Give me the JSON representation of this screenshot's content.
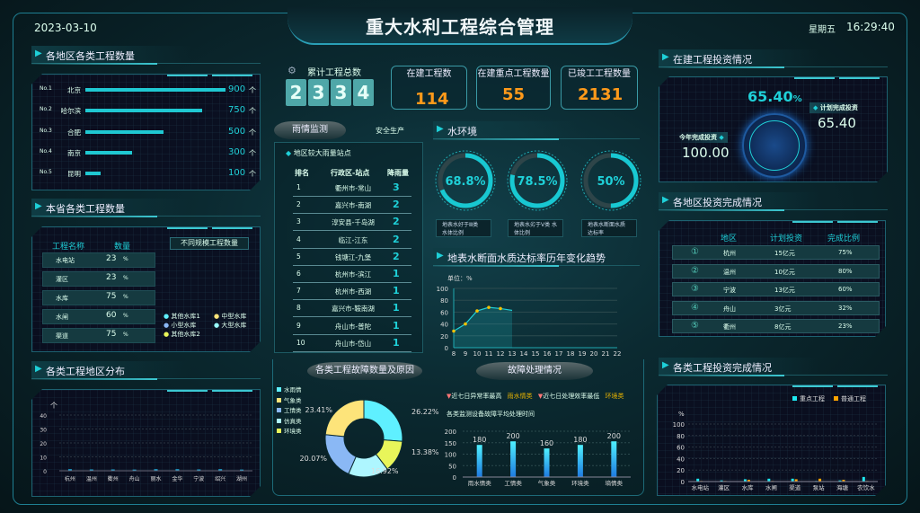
{
  "header": {
    "title": "重大水利工程综合管理",
    "date": "2023-03-10",
    "weekday": "星期五",
    "time": "16:29:40"
  },
  "colors": {
    "accent": "#1fd0d8",
    "orange": "#ff9a1a",
    "bg": "#071a1f"
  },
  "left": {
    "sec1": "各地区各类工程数量",
    "ranking": [
      {
        "no": "No.1",
        "city": "北京",
        "value": 900
      },
      {
        "no": "No.2",
        "city": "哈尔滨",
        "value": 750
      },
      {
        "no": "No.3",
        "city": "合肥",
        "value": 500
      },
      {
        "no": "No.4",
        "city": "南京",
        "value": 300
      },
      {
        "no": "No.5",
        "city": "昆明",
        "value": 100
      }
    ],
    "unit": "个",
    "sec2": "本省各类工程数量",
    "table_headers": [
      "工程名称",
      "数量"
    ],
    "table": [
      {
        "name": "水电站",
        "value": "23"
      },
      {
        "name": "灌区",
        "value": "23"
      },
      {
        "name": "水库",
        "value": "75"
      },
      {
        "name": "水闸",
        "value": "60"
      },
      {
        "name": "渠道",
        "value": "75"
      }
    ],
    "pct": "%",
    "scale_label": "不同规模工程数量",
    "scale_legend": [
      {
        "name": "其他水库1",
        "color": "#5ff0ff"
      },
      {
        "name": "中型水库",
        "color": "#fde47a"
      },
      {
        "name": "小型水库",
        "color": "#8ab8f5"
      },
      {
        "name": "大型水库",
        "color": "#9ff"
      },
      {
        "name": "其他水库2",
        "color": "#e8f55a"
      }
    ],
    "sec3": "各类工程地区分布"
  },
  "center": {
    "total_label": "累计工程总数",
    "total_digits": [
      "2",
      "3",
      "3",
      "4"
    ],
    "cards": [
      {
        "label": "在建工程数",
        "value": "114"
      },
      {
        "label": "在建重点工程数量",
        "value": "55"
      },
      {
        "label": "已竣工工程数量",
        "value": "2131"
      }
    ],
    "tabs": [
      {
        "label": "雨情监测",
        "active": true
      },
      {
        "label": "安全生产",
        "active": false
      }
    ],
    "rain_title": "地区较大雨量站点",
    "rain_headers": [
      "排名",
      "行政区-站点",
      "降雨量"
    ],
    "rain": [
      {
        "rank": "1",
        "site": "衢州市-常山",
        "v": "3"
      },
      {
        "rank": "2",
        "site": "嘉兴市-南湖",
        "v": "2"
      },
      {
        "rank": "3",
        "site": "淳安县-千岛湖",
        "v": "2"
      },
      {
        "rank": "4",
        "site": "临江-江东",
        "v": "2"
      },
      {
        "rank": "5",
        "site": "钱塘江-九堡",
        "v": "2"
      },
      {
        "rank": "6",
        "site": "杭州市-滨江",
        "v": "1"
      },
      {
        "rank": "7",
        "site": "杭州市-西湖",
        "v": "1"
      },
      {
        "rank": "8",
        "site": "嘉兴市-鞍南湖",
        "v": "1"
      },
      {
        "rank": "9",
        "site": "舟山市-普陀",
        "v": "1"
      },
      {
        "rank": "10",
        "site": "舟山市-岱山",
        "v": "1"
      }
    ],
    "water_title": "水环境",
    "gauges": [
      {
        "value": 68.8,
        "label": "68.8%",
        "desc1": "地表水好于Ⅲ类",
        "desc2": "水体比例"
      },
      {
        "value": 78.5,
        "label": "78.5%",
        "desc1": "地表水劣于Ⅴ类",
        "desc2": "水体比例"
      },
      {
        "value": 50,
        "label": "50%",
        "desc1": "地表水断面水质",
        "desc2": "达标率"
      }
    ],
    "trend_title": "地表水断面水质达标率历年变化趋势",
    "fault_title": "各类工程故障数量及原因",
    "handle_title": "故障处理情况",
    "alerts": [
      {
        "label": "近七日异常率最高",
        "value": "雨水情类"
      },
      {
        "label": "近七日处理效率最低",
        "value": "环境类"
      }
    ],
    "bar_subtitle": "各类监测设备故障平均处理时间"
  },
  "right": {
    "sec1": "在建工程投资情况",
    "percent": "65.40",
    "pct": "%",
    "plan_label": "计划完成投资",
    "plan_value": "65.40",
    "year_label": "今年完成投资",
    "year_value": "100.00",
    "sec2": "各地区投资完成情况",
    "headers": [
      "地区",
      "计划投资",
      "完成比例"
    ],
    "rows": [
      {
        "n": "①",
        "region": "杭州",
        "plan": "15亿元",
        "ratio": "75%"
      },
      {
        "n": "②",
        "region": "温州",
        "plan": "10亿元",
        "ratio": "80%"
      },
      {
        "n": "③",
        "region": "宁波",
        "plan": "13亿元",
        "ratio": "60%"
      },
      {
        "n": "④",
        "region": "舟山",
        "plan": "3亿元",
        "ratio": "32%"
      },
      {
        "n": "⑤",
        "region": "衢州",
        "plan": "8亿元",
        "ratio": "23%"
      }
    ],
    "sec3": "各类工程投资完成情况"
  },
  "chart_data": [
    {
      "type": "bar",
      "ylabel": "个",
      "categories": [
        "杭州",
        "温州",
        "衢州",
        "舟山",
        "丽水",
        "金华",
        "宁波",
        "绍兴",
        "湖州"
      ],
      "values": [
        0.5,
        0.3,
        0.3,
        0.2,
        0.5,
        0.5,
        0.3,
        0.5,
        0.2
      ],
      "ylim": [
        0,
        40
      ],
      "ticks": [
        0,
        10,
        20,
        30,
        40
      ]
    },
    {
      "type": "line",
      "ylabel": "单位：%",
      "x": [
        8,
        9,
        10,
        11,
        12,
        13,
        14,
        15,
        16,
        17,
        18,
        19,
        20,
        21,
        22
      ],
      "points": [
        [
          8,
          28
        ],
        [
          9,
          40
        ],
        [
          10,
          62
        ],
        [
          11,
          68
        ],
        [
          12,
          66
        ],
        [
          13,
          63
        ]
      ],
      "ylim": [
        0,
        100
      ],
      "ticks": [
        0,
        20,
        40,
        60,
        80,
        100
      ]
    },
    {
      "type": "pie",
      "series": [
        {
          "name": "水雨情",
          "value": 26.22,
          "label": "26.22%",
          "color": "#5ff0ff"
        },
        {
          "name": "环境类",
          "value": 13.38,
          "label": "13.38%",
          "color": "#e8f55a"
        },
        {
          "name": "仿真类",
          "value": 16.92,
          "label": "16.92%",
          "color": "#aef6ff"
        },
        {
          "name": "工情类",
          "value": 20.07,
          "label": "20.07%",
          "color": "#8ab8f5"
        },
        {
          "name": "气象类",
          "value": 23.41,
          "label": "23.41%",
          "color": "#fde47a"
        }
      ],
      "legend": [
        "水雨情",
        "气象类",
        "工情类",
        "仿真类",
        "环境类"
      ]
    },
    {
      "type": "bar",
      "categories": [
        "雨水情类",
        "工情类",
        "气象类",
        "环境类",
        "墒情类"
      ],
      "values": [
        180,
        200,
        160,
        180,
        200
      ],
      "ylim": [
        0,
        200
      ],
      "ticks": [
        0,
        50,
        100,
        150,
        200
      ]
    },
    {
      "type": "bar",
      "ylabel": "%",
      "categories": [
        "水电站",
        "灌区",
        "水库",
        "水闸",
        "渠道",
        "泵站",
        "海塘",
        "农饮水"
      ],
      "series": [
        {
          "name": "重点工程",
          "color": "#1ee8f0",
          "values": [
            5,
            2,
            4,
            5,
            5,
            1,
            2,
            8
          ]
        },
        {
          "name": "普通工程",
          "color": "#ffa500",
          "values": [
            1,
            1,
            3,
            1,
            4,
            5,
            3,
            1
          ]
        }
      ],
      "ylim": [
        0,
        100
      ],
      "ticks": [
        0,
        20,
        40,
        60,
        80,
        100
      ],
      "legend": "top-right"
    }
  ]
}
